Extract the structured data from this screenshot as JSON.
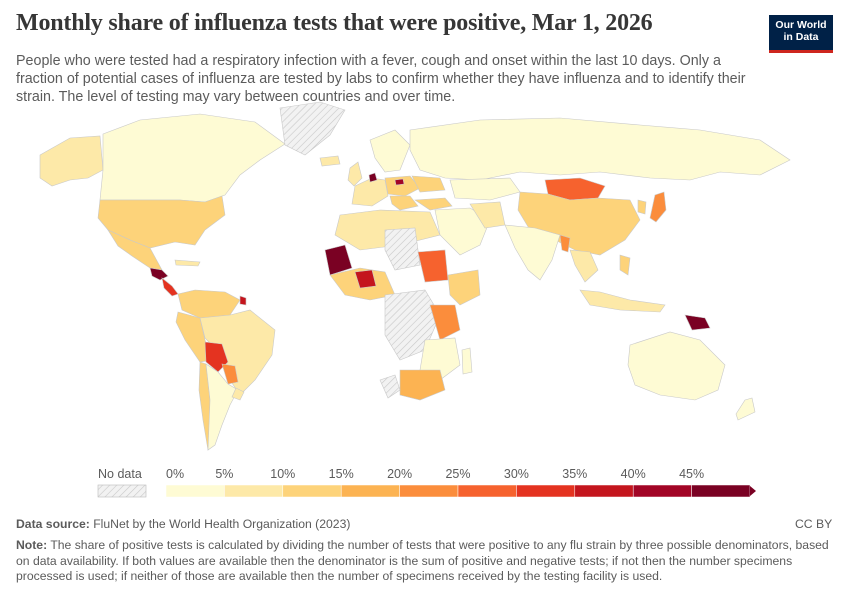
{
  "header": {
    "title": "Monthly share of influenza tests that were positive, Mar 1, 2026",
    "subtitle": "People who were tested had a respiratory infection with a fever, cough and onset within the last 10 days. Only a fraction of potential cases of influenza are tested by labs to confirm whether they have influenza and to identify their strain. The level of testing may vary between countries and over time."
  },
  "logo": {
    "line1": "Our World",
    "line2": "in Data"
  },
  "legend": {
    "no_data_label": "No data",
    "ticks": [
      "0%",
      "5%",
      "10%",
      "15%",
      "20%",
      "25%",
      "30%",
      "35%",
      "40%",
      "45%"
    ],
    "colors": [
      "#fefbd4",
      "#fde9a8",
      "#fdd37a",
      "#fcb352",
      "#fb8d3c",
      "#f6622e",
      "#e43320",
      "#c4151d",
      "#a20526",
      "#7a0123"
    ]
  },
  "footer": {
    "source_label": "Data source:",
    "source_text": "FluNet by the World Health Organization (2023)",
    "license": "CC BY",
    "note_label": "Note:",
    "note_text": "The share of positive tests is calculated by dividing the number of tests that were positive to any flu strain by three possible denominators, based on data availability. If both values are available then the denominator is the sum of positive and negative tests; if not then the number specimens processed is used; if neither of those are available then the number of specimens received by the testing facility is used."
  }
}
